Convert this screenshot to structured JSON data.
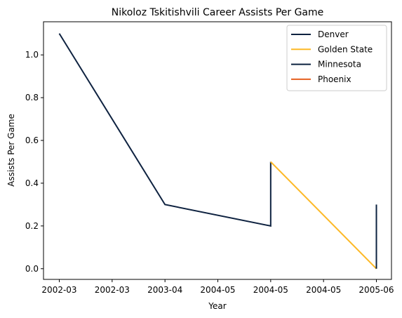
{
  "chart_data": {
    "type": "line",
    "title": "Nikoloz Tskitishvili Career Assists Per Game",
    "xlabel": "Year",
    "ylabel": "Assists Per Game",
    "x_tick_labels": [
      "2002-03",
      "2002-03",
      "2003-04",
      "2004-05",
      "2004-05",
      "2004-05",
      "2005-06"
    ],
    "y_ticks": [
      0.0,
      0.2,
      0.4,
      0.6,
      0.8,
      1.0
    ],
    "y_tick_labels": [
      "0.0",
      "0.2",
      "0.4",
      "0.6",
      "0.8",
      "1.0"
    ],
    "ylim": [
      -0.05,
      1.155
    ],
    "grid": false,
    "legend_position": "top-right",
    "series": [
      {
        "name": "Denver",
        "color": "#0E2240",
        "x": [
          "2002-03",
          "2003-04",
          "2004-05",
          "2004-05"
        ],
        "y": [
          1.1,
          0.3,
          0.2,
          0.5
        ]
      },
      {
        "name": "Golden State",
        "color": "#FDB927",
        "x": [
          "2004-05",
          "2005-06"
        ],
        "y": [
          0.5,
          0.0
        ]
      },
      {
        "name": "Minnesota",
        "color": "#0C2340",
        "x": [
          "2005-06",
          "2005-06"
        ],
        "y": [
          0.0,
          0.3
        ]
      },
      {
        "name": "Phoenix",
        "color": "#E56020",
        "x": [],
        "y": []
      }
    ]
  }
}
